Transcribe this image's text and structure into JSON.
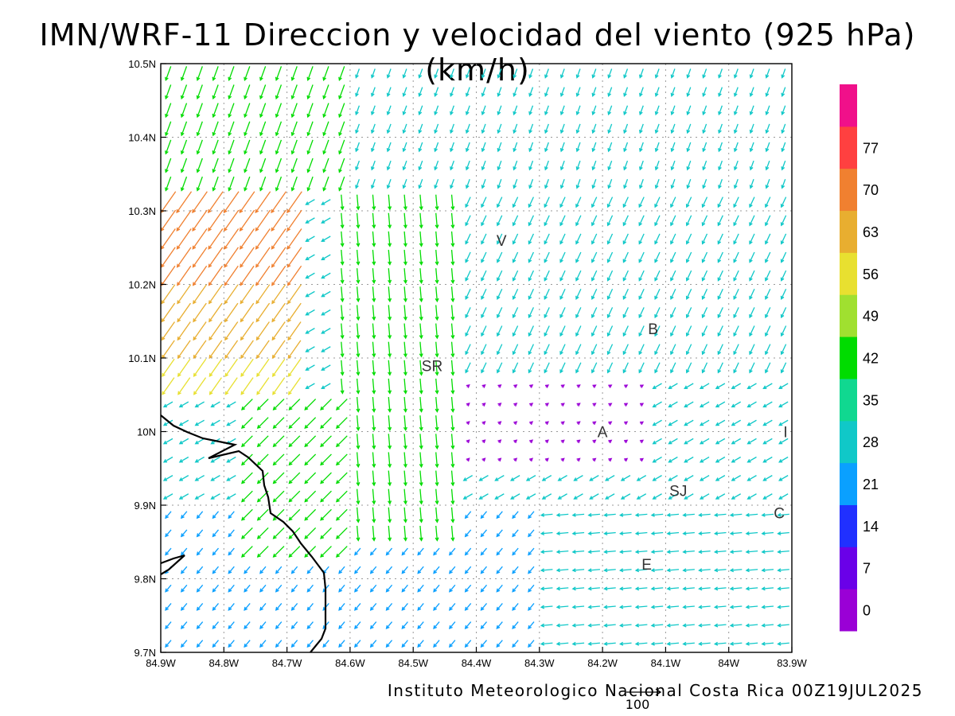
{
  "title": "IMN/WRF-11 Direccion y velocidad del viento (925 hPa)(km/h)",
  "footer": "Instituto Meteorologico Nacional Costa Rica 00Z19JUL2025",
  "chart_data": {
    "type": "vector-field",
    "title": "IMN/WRF-11 Direccion y velocidad del viento (925 hPa)(km/h)",
    "units": "km/h",
    "x_ticks": [
      "84.9W",
      "84.8W",
      "84.7W",
      "84.6W",
      "84.5W",
      "84.4W",
      "84.3W",
      "84.2W",
      "84.1W",
      "84W",
      "83.9W"
    ],
    "y_ticks": [
      "10.5N",
      "10.4N",
      "10.3N",
      "10.2N",
      "10.1N",
      "10N",
      "9.9N",
      "9.8N",
      "9.7N"
    ],
    "lon_range": [
      -84.9,
      -83.9
    ],
    "lat_range": [
      9.7,
      10.5
    ],
    "grid": "dotted",
    "colorbar": {
      "placement": "right",
      "levels": [
        "0",
        "7",
        "14",
        "21",
        "28",
        "35",
        "42",
        "49",
        "56",
        "63",
        "70",
        "77"
      ],
      "colors": [
        "#9a00d6",
        "#6a00e8",
        "#2030ff",
        "#0aa0ff",
        "#10c8c8",
        "#10d890",
        "#00dc00",
        "#a0e030",
        "#e8e030",
        "#e8ae30",
        "#f08030",
        "#ff4040",
        "#f0108a"
      ]
    },
    "reference_vector": {
      "value": 100,
      "label": "100"
    },
    "places": [
      {
        "label": "V",
        "lon": -84.36,
        "lat": 10.26
      },
      {
        "label": "SR",
        "lon": -84.47,
        "lat": 10.09
      },
      {
        "label": "B",
        "lon": -84.12,
        "lat": 10.14
      },
      {
        "label": "A",
        "lon": -84.2,
        "lat": 10.0
      },
      {
        "label": "SJ",
        "lon": -84.08,
        "lat": 9.92
      },
      {
        "label": "C",
        "lon": -83.92,
        "lat": 9.89
      },
      {
        "label": "E",
        "lon": -84.13,
        "lat": 9.82
      },
      {
        "label": "I",
        "lon": -83.91,
        "lat": 10.0
      }
    ],
    "wind_regions": [
      {
        "area": "north strip (lat >= 10.33)",
        "direction": "from east-northeast",
        "speed_kmh": 30
      },
      {
        "area": "northwest (84.9W-84.7W, 10.05N-10.3N)",
        "direction": "from northeast",
        "speed_kmh": 70
      },
      {
        "area": "central mountains (84.6W-84.4W)",
        "direction": "from north",
        "speed_kmh": 45
      },
      {
        "area": "central valley (84.4W-84.1W, 9.95N-10.07N)",
        "direction": "variable",
        "speed_kmh": 5
      },
      {
        "area": "southwest lowlands",
        "direction": "from northeast",
        "speed_kmh": 28
      },
      {
        "area": "southeast (84.3W-83.9W, 9.7N-9.9N)",
        "direction": "from east",
        "speed_kmh": 35
      }
    ]
  }
}
